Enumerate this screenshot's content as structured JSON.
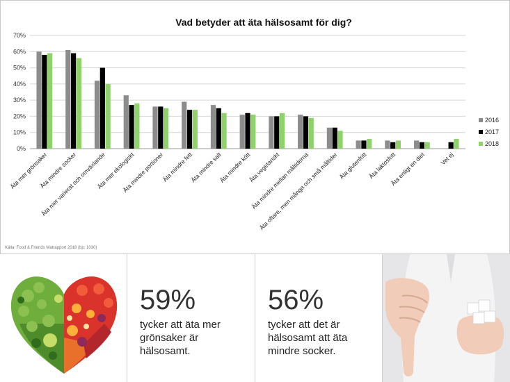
{
  "chart_data": {
    "type": "bar",
    "title": "Vad betyder att äta hälsosamt för dig?",
    "xlabel": "",
    "ylabel": "",
    "ylim": [
      0,
      70
    ],
    "y_ticks": [
      "0%",
      "10%",
      "20%",
      "30%",
      "40%",
      "50%",
      "60%",
      "70%"
    ],
    "grid": true,
    "legend_position": "right",
    "categories": [
      "Äta mer grönsaker",
      "Äta mindre socker",
      "Äta mer varierat och omväxlande",
      "Äta mer ekologiskt",
      "Äta mindre portioner",
      "Äta mindre fett",
      "Äta mindre salt",
      "Äta mindre kött",
      "Äta vegetariskt",
      "Äta mindre mellan måltiderna",
      "Äta oftare, men många och små måltider",
      "Äta glutenfritt",
      "Äta laktosfritt",
      "Äta enligt en diet",
      "Vet ej"
    ],
    "series": [
      {
        "name": "2016",
        "color": "#8c8c8c",
        "values": [
          60,
          61,
          42,
          33,
          26,
          29,
          27,
          21,
          20,
          21,
          13,
          5,
          5,
          5,
          0
        ]
      },
      {
        "name": "2017",
        "color": "#000000",
        "values": [
          58,
          59,
          50,
          27,
          26,
          24,
          25,
          22,
          20,
          20,
          13,
          5,
          4,
          4,
          4
        ]
      },
      {
        "name": "2018",
        "color": "#8fd16b",
        "values": [
          59,
          56,
          40,
          28,
          25,
          24,
          22,
          21,
          22,
          19,
          11,
          6,
          5,
          4,
          6
        ]
      }
    ]
  },
  "source": "Källa: Food & Friends Matrapport 2018 (bp: 1030)",
  "stats": [
    {
      "value": "59%",
      "text": "tycker att äta mer grönsaker är hälsosamt."
    },
    {
      "value": "56%",
      "text": "tycker att det är hälsosamt att äta mindre socker."
    }
  ],
  "images": {
    "heart": "vegetable-heart-photo",
    "photo": "thumbs-down-sugar-cubes-photo"
  }
}
